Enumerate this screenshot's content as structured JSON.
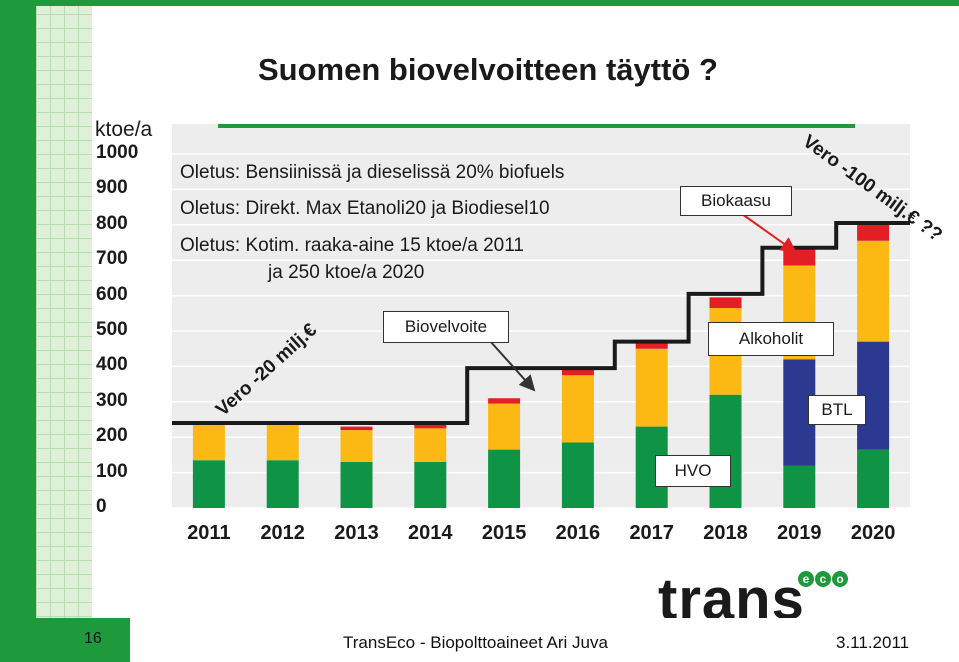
{
  "title": "Suomen biovelvoitteen täyttö ?",
  "notes": {
    "line1": "Oletus: Bensiinissä ja dieselissä 20% biofuels",
    "line2": "Oletus: Direkt. Max Etanoli20 ja Biodiesel10",
    "line3": "Oletus: Kotim. raaka-aine 15 ktoe/a 2011",
    "line4": "ja 250 ktoe/a 2020"
  },
  "annotations": {
    "vero20": "Vero -20 milj.€",
    "vero100": "Vero -100 milj.€ ??",
    "biovelvoite": "Biovelvoite",
    "biokaasu": "Biokaasu",
    "alkoholit": "Alkoholit",
    "btl": "BTL",
    "hvo": "HVO"
  },
  "footer": {
    "page": "16",
    "center": "TransEco - Biopolttoaineet   Ari Juva",
    "date": "3.11.2011"
  },
  "logo": {
    "main": "trans",
    "eco": "eco"
  },
  "colors": {
    "hvo": "#0f9345",
    "btl": "#2b3990",
    "alkoholit": "#fdb913",
    "biokaasu": "#e31e24",
    "frame_green": "#1e9a3c",
    "plot_bg": "#ededed"
  },
  "chart_data": {
    "type": "bar",
    "stacked": true,
    "title": "Suomen biovelvoitteen täyttö ?",
    "ylabel": "ktoe/a",
    "xlabel": "",
    "ylim": [
      0,
      1000
    ],
    "yticks": [
      0,
      100,
      200,
      300,
      400,
      500,
      600,
      700,
      800,
      900,
      1000
    ],
    "grid": true,
    "categories": [
      "2011",
      "2012",
      "2013",
      "2014",
      "2015",
      "2016",
      "2017",
      "2018",
      "2019",
      "2020"
    ],
    "series": [
      {
        "name": "HVO",
        "color_key": "hvo",
        "values": [
          135,
          135,
          130,
          130,
          165,
          185,
          230,
          320,
          120,
          165
        ]
      },
      {
        "name": "BTL",
        "color_key": "btl",
        "values": [
          0,
          0,
          0,
          0,
          0,
          0,
          0,
          0,
          300,
          305
        ]
      },
      {
        "name": "Alkoholit",
        "color_key": "alkoholit",
        "values": [
          100,
          100,
          90,
          95,
          130,
          190,
          220,
          245,
          265,
          285
        ]
      },
      {
        "name": "Biokaasu",
        "color_key": "biokaasu",
        "values": [
          0,
          0,
          10,
          10,
          15,
          20,
          25,
          30,
          45,
          50
        ]
      }
    ],
    "line": {
      "name": "Biovelvoite",
      "type": "step",
      "values": [
        240,
        240,
        240,
        240,
        395,
        395,
        470,
        605,
        735,
        805
      ]
    }
  }
}
